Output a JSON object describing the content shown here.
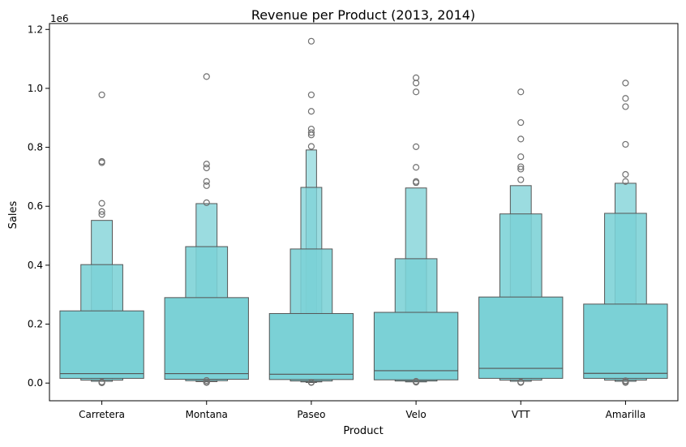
{
  "chart_data": {
    "type": "boxen",
    "title": "Revenue per Product (2013, 2014)",
    "xlabel": "Product",
    "ylabel": "Sales",
    "offset_label": "1e6",
    "ylim": [
      -0.06,
      1.22
    ],
    "yticks": [
      0.0,
      0.2,
      0.4,
      0.6,
      0.8,
      1.0,
      1.2
    ],
    "ytick_labels": [
      "0.0",
      "0.2",
      "0.4",
      "0.6",
      "0.8",
      "1.0",
      "1.2"
    ],
    "categories": [
      "Carretera",
      "Montana",
      "Paseo",
      "Velo",
      "VTT",
      "Amarilla"
    ],
    "colors": {
      "fill": "#7bd1d6",
      "edge": "#555555"
    },
    "series": [
      {
        "category": "Carretera",
        "median": 0.032,
        "levels": [
          {
            "lower": 0.016,
            "upper": 0.245
          },
          {
            "lower": 0.01,
            "upper": 0.402
          },
          {
            "lower": 0.006,
            "upper": 0.552
          }
        ],
        "outliers": [
          0.978,
          0.752,
          0.748,
          0.61,
          0.582,
          0.572,
          0.004,
          0.002,
          0.001
        ]
      },
      {
        "category": "Montana",
        "median": 0.032,
        "levels": [
          {
            "lower": 0.013,
            "upper": 0.29
          },
          {
            "lower": 0.008,
            "upper": 0.463
          },
          {
            "lower": 0.005,
            "upper": 0.609
          }
        ],
        "outliers": [
          1.04,
          0.743,
          0.73,
          0.684,
          0.67,
          0.612,
          0.009,
          0.004,
          0.002
        ]
      },
      {
        "category": "Paseo",
        "median": 0.03,
        "levels": [
          {
            "lower": 0.012,
            "upper": 0.236
          },
          {
            "lower": 0.007,
            "upper": 0.455
          },
          {
            "lower": 0.004,
            "upper": 0.664
          },
          {
            "lower": 0.002,
            "upper": 0.791
          }
        ],
        "outliers": [
          1.16,
          0.978,
          0.922,
          0.862,
          0.85,
          0.842,
          0.803,
          0.003,
          0.002
        ]
      },
      {
        "category": "Velo",
        "median": 0.042,
        "levels": [
          {
            "lower": 0.011,
            "upper": 0.24
          },
          {
            "lower": 0.007,
            "upper": 0.422
          },
          {
            "lower": 0.004,
            "upper": 0.662
          }
        ],
        "outliers": [
          1.036,
          1.018,
          0.988,
          0.802,
          0.732,
          0.684,
          0.68,
          0.006,
          0.003
        ]
      },
      {
        "category": "VTT",
        "median": 0.05,
        "levels": [
          {
            "lower": 0.016,
            "upper": 0.292
          },
          {
            "lower": 0.01,
            "upper": 0.574
          },
          {
            "lower": 0.006,
            "upper": 0.67
          }
        ],
        "outliers": [
          0.988,
          0.884,
          0.828,
          0.768,
          0.734,
          0.726,
          0.69,
          0.004,
          0.002
        ]
      },
      {
        "category": "Amarilla",
        "median": 0.033,
        "levels": [
          {
            "lower": 0.016,
            "upper": 0.268
          },
          {
            "lower": 0.01,
            "upper": 0.576
          },
          {
            "lower": 0.006,
            "upper": 0.678
          }
        ],
        "outliers": [
          1.018,
          0.966,
          0.938,
          0.81,
          0.708,
          0.684,
          0.008,
          0.004,
          0.002
        ]
      }
    ]
  }
}
